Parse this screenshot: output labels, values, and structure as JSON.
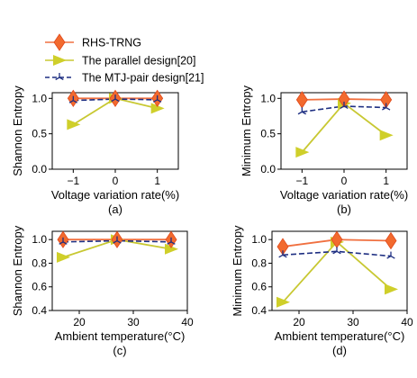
{
  "legend": [
    {
      "name": "RHS-TRNG",
      "series_index": 0
    },
    {
      "name": "The parallel design[20]",
      "series_index": 1
    },
    {
      "name": "The MTJ-pair design[21]",
      "series_index": 2
    }
  ],
  "styles": {
    "series_colors": [
      "#f07040",
      "#c8c832",
      "#1e2f82"
    ],
    "marker_colors": [
      "#f26a2e",
      "#cfcf2a",
      "#1e2f82"
    ],
    "series_markers": [
      "diamond",
      "triangle-right",
      "star"
    ],
    "series_dashed": [
      false,
      false,
      true
    ]
  },
  "chart_data": [
    {
      "type": "line",
      "panel_label": "(a)",
      "xlabel": "Voltage variation rate(%)",
      "ylabel": "Shannon Entropy",
      "x": [
        -1,
        0,
        1
      ],
      "xlim": [
        -1.5,
        1.5
      ],
      "ylim": [
        0.0,
        1.08
      ],
      "xticks": [
        -1,
        0,
        1
      ],
      "xtick_labels": [
        "−1",
        "0",
        "1"
      ],
      "yticks": [
        0.0,
        0.5,
        1.0
      ],
      "ytick_labels": [
        "0.0",
        "0.5",
        "1.0"
      ],
      "series": [
        {
          "name": "RHS-TRNG",
          "values": [
            1.0,
            1.0,
            1.0
          ]
        },
        {
          "name": "The parallel design[20]",
          "values": [
            0.63,
            1.0,
            0.86
          ]
        },
        {
          "name": "The MTJ-pair design[21]",
          "values": [
            0.97,
            0.99,
            0.98
          ]
        }
      ]
    },
    {
      "type": "line",
      "panel_label": "(b)",
      "xlabel": "Voltage variation rate(%)",
      "ylabel": "Minimum Entropy",
      "x": [
        -1,
        0,
        1
      ],
      "xlim": [
        -1.5,
        1.5
      ],
      "ylim": [
        0.0,
        1.08
      ],
      "xticks": [
        -1,
        0,
        1
      ],
      "xtick_labels": [
        "−1",
        "0",
        "1"
      ],
      "yticks": [
        0.0,
        0.5,
        1.0
      ],
      "ytick_labels": [
        "0.0",
        "0.5",
        "1.0"
      ],
      "series": [
        {
          "name": "RHS-TRNG",
          "values": [
            0.98,
            0.99,
            0.98
          ]
        },
        {
          "name": "The parallel design[20]",
          "values": [
            0.24,
            0.93,
            0.48
          ]
        },
        {
          "name": "The MTJ-pair design[21]",
          "values": [
            0.81,
            0.89,
            0.87
          ]
        }
      ]
    },
    {
      "type": "line",
      "panel_label": "(c)",
      "xlabel": "Ambient temperature(°C)",
      "ylabel": "Shannon Entropy",
      "x": [
        17,
        27,
        37
      ],
      "xlim": [
        15,
        40
      ],
      "ylim": [
        0.4,
        1.07
      ],
      "xticks": [
        20,
        30,
        40
      ],
      "xtick_labels": [
        "20",
        "30",
        "40"
      ],
      "yticks": [
        0.4,
        0.6,
        0.8,
        1.0
      ],
      "ytick_labels": [
        "0.4",
        "0.6",
        "0.8",
        "1.0"
      ],
      "series": [
        {
          "name": "RHS-TRNG",
          "values": [
            1.0,
            1.0,
            1.0
          ]
        },
        {
          "name": "The parallel design[20]",
          "values": [
            0.85,
            1.0,
            0.92
          ]
        },
        {
          "name": "The MTJ-pair design[21]",
          "values": [
            0.98,
            0.99,
            0.98
          ]
        }
      ]
    },
    {
      "type": "line",
      "panel_label": "(d)",
      "xlabel": "Ambient temperature(°C)",
      "ylabel": "Minimum Entropy",
      "x": [
        17,
        27,
        37
      ],
      "xlim": [
        15,
        40
      ],
      "ylim": [
        0.4,
        1.07
      ],
      "xticks": [
        20,
        30,
        40
      ],
      "xtick_labels": [
        "20",
        "30",
        "40"
      ],
      "yticks": [
        0.4,
        0.6,
        0.8,
        1.0
      ],
      "ytick_labels": [
        "0.4",
        "0.6",
        "0.8",
        "1.0"
      ],
      "series": [
        {
          "name": "RHS-TRNG",
          "values": [
            0.94,
            1.0,
            0.99
          ]
        },
        {
          "name": "The parallel design[20]",
          "values": [
            0.47,
            0.98,
            0.58
          ]
        },
        {
          "name": "The MTJ-pair design[21]",
          "values": [
            0.87,
            0.9,
            0.86
          ]
        }
      ]
    }
  ]
}
